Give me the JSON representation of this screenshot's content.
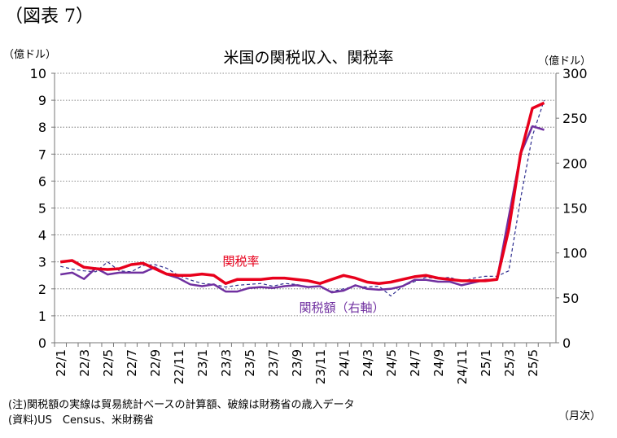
{
  "figure": {
    "label": "（図表 7）",
    "note": "(注)関税額の実線は貿易統計ベースの計算額、破線は財務省の歳入データ",
    "source": "(資料)US　Census、米財務省"
  },
  "chart_data": {
    "type": "line",
    "title": "米国の関税収入、関税率",
    "y_left_unit": "（億ドル）",
    "y_right_unit": "（億ドル）",
    "x_unit": "（月次）",
    "y_left_ticks": [
      "0",
      "1",
      "2",
      "3",
      "4",
      "5",
      "6",
      "7",
      "8",
      "9",
      "10"
    ],
    "y_right_ticks": [
      "0",
      "50",
      "100",
      "150",
      "200",
      "250",
      "300"
    ],
    "ylim_left": [
      0,
      10
    ],
    "ylim_right": [
      0,
      300
    ],
    "grid": true,
    "x_tick_labels": [
      "22/1",
      "22/3",
      "22/5",
      "22/7",
      "22/9",
      "22/11",
      "23/1",
      "23/3",
      "23/5",
      "23/7",
      "23/9",
      "23/11",
      "24/1",
      "24/3",
      "24/5",
      "24/7",
      "24/9",
      "24/11",
      "25/1",
      "25/3",
      "25/5"
    ],
    "x": [
      "22/1",
      "22/2",
      "22/3",
      "22/4",
      "22/5",
      "22/6",
      "22/7",
      "22/8",
      "22/9",
      "22/10",
      "22/11",
      "22/12",
      "23/1",
      "23/2",
      "23/3",
      "23/4",
      "23/5",
      "23/6",
      "23/7",
      "23/8",
      "23/9",
      "23/10",
      "23/11",
      "23/12",
      "24/1",
      "24/2",
      "24/3",
      "24/4",
      "24/5",
      "24/6",
      "24/7",
      "24/8",
      "24/9",
      "24/10",
      "24/11",
      "24/12",
      "25/1",
      "25/2",
      "25/3",
      "25/4",
      "25/5",
      "25/6"
    ],
    "series": [
      {
        "name": "関税率",
        "axis": "left",
        "color": "#e8001c",
        "style": "solid-thick",
        "values": [
          3.0,
          3.05,
          2.8,
          2.75,
          2.72,
          2.75,
          2.9,
          2.95,
          2.75,
          2.55,
          2.5,
          2.5,
          2.55,
          2.5,
          2.2,
          2.35,
          2.35,
          2.35,
          2.4,
          2.4,
          2.35,
          2.3,
          2.2,
          2.35,
          2.5,
          2.4,
          2.25,
          2.2,
          2.25,
          2.35,
          2.45,
          2.5,
          2.4,
          2.35,
          2.3,
          2.3,
          2.3,
          2.35,
          4.2,
          7.0,
          8.7,
          8.9
        ]
      },
      {
        "name": "関税額（右軸）",
        "axis": "right",
        "color": "#7030a0",
        "style": "solid",
        "values": [
          76,
          78,
          71,
          83,
          76,
          78,
          78,
          78,
          84,
          76,
          72,
          65,
          63,
          65,
          57,
          57,
          61,
          62,
          61,
          63,
          64,
          62,
          63,
          56,
          58,
          64,
          60,
          59,
          60,
          63,
          70,
          70,
          68,
          68,
          64,
          67,
          70,
          70,
          140,
          210,
          241,
          237
        ]
      },
      {
        "name": "",
        "axis": "right",
        "color": "#2e2e8f",
        "style": "dashed",
        "values": [
          85,
          82,
          80,
          79,
          90,
          80,
          79,
          86,
          87,
          83,
          75,
          70,
          66,
          65,
          62,
          64,
          65,
          66,
          63,
          66,
          65,
          62,
          63,
          57,
          60,
          63,
          62,
          63,
          52,
          63,
          68,
          73,
          71,
          73,
          68,
          72,
          74,
          74,
          80,
          160,
          230,
          270
        ]
      }
    ],
    "annotations": [
      {
        "text": "関税率",
        "series": "関税率",
        "color": "#e8001c"
      },
      {
        "text": "関税額（右軸）",
        "series": "関税額（右軸）",
        "color": "#7030a0"
      }
    ]
  }
}
